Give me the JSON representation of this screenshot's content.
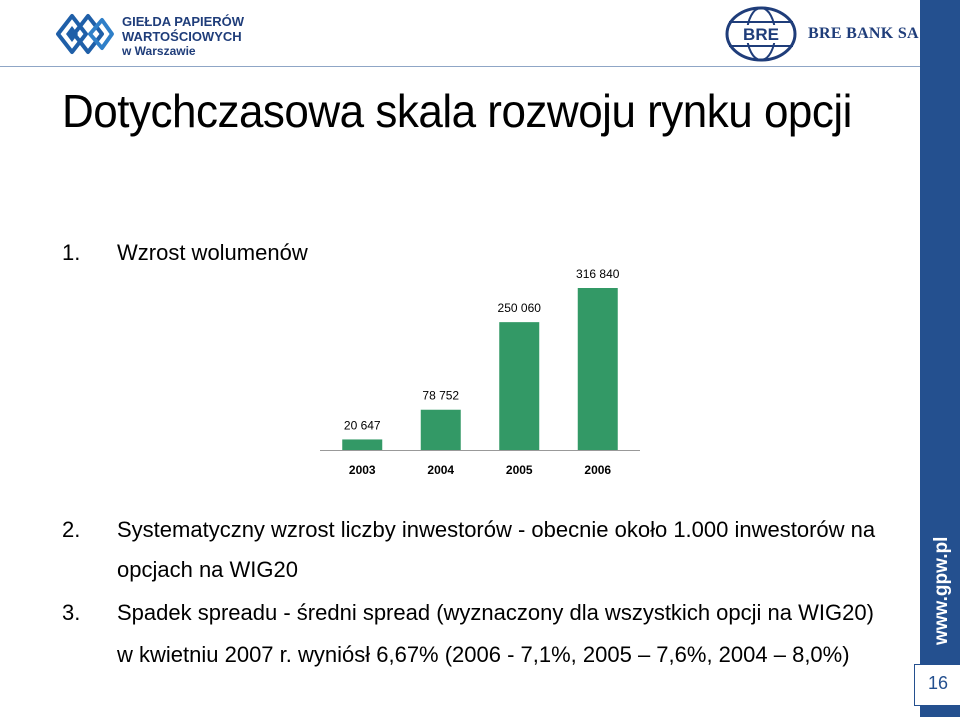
{
  "header": {
    "gpw_logo_lines": [
      "GIEŁDA PAPIERÓW",
      "WARTOŚCIOWYCH",
      "w Warszawie"
    ],
    "bre_logo_mark": "BRE",
    "bre_logo_text": "BRE BANK SA"
  },
  "title": "Dotychczasowa skala rozwoju rynku opcji",
  "items": [
    {
      "num": "1.",
      "text": "Wzrost wolumenów"
    },
    {
      "num": "2.",
      "text": "Systematyczny wzrost liczby inwestorów - obecnie około 1.000 inwestorów na",
      "cont": "opcjach na WIG20"
    },
    {
      "num": "3.",
      "text": "Spadek spreadu - średni spread (wyznaczony dla wszystkich opcji na WIG20)",
      "cont": "w kwietniu 2007 r. wyniósł 6,67% (2006 - 7,1%, 2005 – 7,6%, 2004 – 8,0%)"
    }
  ],
  "sidebar": {
    "url": "www.gpw.pl",
    "page_number": "16"
  },
  "colors": {
    "bar": "#339966",
    "brand_blue": "#24508f"
  },
  "chart_data": {
    "type": "bar",
    "categories": [
      "2003",
      "2004",
      "2005",
      "2006"
    ],
    "values": [
      20647,
      78752,
      250060,
      316840
    ],
    "value_labels": [
      "20 647",
      "78 752",
      "250 060",
      "316 840"
    ],
    "ylim": [
      0,
      316840
    ],
    "grid": false,
    "legend": "none"
  }
}
